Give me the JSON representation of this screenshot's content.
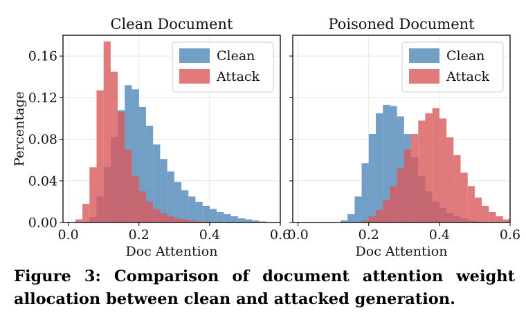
{
  "caption": "Figure 3: Comparison of document attention weight allocation between clean and attacked generation.",
  "colors": {
    "clean": "#4f87b8",
    "attack": "#d9595a",
    "grid": "#e6e6e6"
  },
  "chart_data": [
    {
      "type": "bar",
      "title": "Clean Document",
      "xlabel": "Doc Attention",
      "ylabel": "Percentage",
      "xlim": [
        -0.015,
        0.6
      ],
      "ylim": [
        0,
        0.18
      ],
      "xticks": [
        "0.0",
        "0.2",
        "0.4",
        "0.6"
      ],
      "xtick_values": [
        0.0,
        0.2,
        0.4,
        0.6
      ],
      "yticks": [
        "0.00",
        "0.04",
        "0.08",
        "0.12",
        "0.16"
      ],
      "ytick_values": [
        0.0,
        0.04,
        0.08,
        0.12,
        0.16
      ],
      "grid": true,
      "legend": "top-right",
      "bin_start": 0.02,
      "bin_width": 0.02,
      "series": [
        {
          "name": "Clean",
          "color": "#4f87b8",
          "values": [
            0.0,
            0.0,
            0.005,
            0.025,
            0.053,
            0.082,
            0.108,
            0.132,
            0.128,
            0.111,
            0.093,
            0.075,
            0.061,
            0.049,
            0.039,
            0.031,
            0.025,
            0.02,
            0.016,
            0.013,
            0.01,
            0.008,
            0.006,
            0.004,
            0.003,
            0.002,
            0.001,
            0.0,
            0.0
          ]
        },
        {
          "name": "Attack",
          "color": "#d9595a",
          "values": [
            0.003,
            0.018,
            0.053,
            0.127,
            0.174,
            0.145,
            0.106,
            0.07,
            0.045,
            0.03,
            0.02,
            0.013,
            0.009,
            0.006,
            0.004,
            0.003,
            0.002,
            0.001,
            0.001,
            0.0,
            0.0,
            0.0,
            0.0,
            0.0,
            0.0,
            0.0,
            0.0,
            0.0,
            0.0
          ]
        }
      ]
    },
    {
      "type": "bar",
      "title": "Poisoned Document",
      "xlabel": "Doc Attention",
      "ylabel": "",
      "xlim": [
        -0.015,
        0.6
      ],
      "ylim": [
        0,
        0.18
      ],
      "xticks": [
        "0.0",
        "0.2",
        "0.4",
        "0.6"
      ],
      "xtick_values": [
        0.0,
        0.2,
        0.4,
        0.6
      ],
      "yticks": [],
      "ytick_values": [
        0.0,
        0.04,
        0.08,
        0.12,
        0.16
      ],
      "grid": true,
      "legend": "top-right",
      "bin_start": 0.12,
      "bin_width": 0.02,
      "series": [
        {
          "name": "Clean",
          "color": "#4f87b8",
          "values": [
            0.002,
            0.008,
            0.025,
            0.057,
            0.085,
            0.105,
            0.113,
            0.112,
            0.102,
            0.085,
            0.063,
            0.045,
            0.03,
            0.02,
            0.014,
            0.009,
            0.006,
            0.004,
            0.002,
            0.001,
            0.0,
            0.0,
            0.0,
            0.0
          ]
        },
        {
          "name": "Attack",
          "color": "#d9595a",
          "values": [
            0.0,
            0.0,
            0.0,
            0.002,
            0.006,
            0.012,
            0.022,
            0.035,
            0.052,
            0.07,
            0.085,
            0.098,
            0.105,
            0.11,
            0.1,
            0.082,
            0.065,
            0.048,
            0.035,
            0.024,
            0.016,
            0.01,
            0.006,
            0.003
          ]
        }
      ]
    }
  ]
}
